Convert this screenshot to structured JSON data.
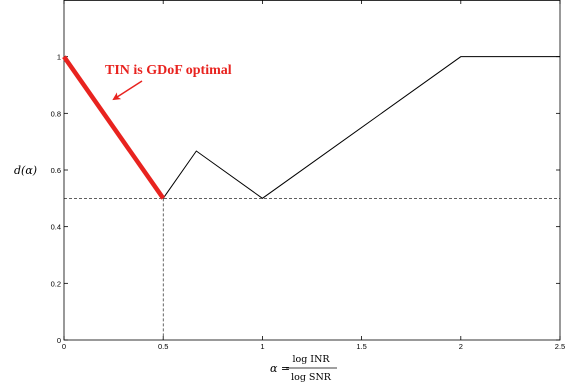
{
  "chart_data": {
    "type": "line",
    "title": "",
    "ylabel": "d(α)",
    "xlabel_prefix": "α = ",
    "xlabel_numerator": "log INR",
    "xlabel_denominator": "log SNR",
    "xlim": [
      0,
      2.5
    ],
    "ylim": [
      0,
      1.2
    ],
    "x_ticks": [
      "0",
      "0.5",
      "1",
      "1.5",
      "2",
      "2.5"
    ],
    "x_tick_values": [
      0,
      0.5,
      1,
      1.5,
      2,
      2.5
    ],
    "y_ticks": [
      "0",
      "0.2",
      "0.4",
      "0.6",
      "0.8",
      "1"
    ],
    "y_tick_values": [
      0,
      0.2,
      0.4,
      0.6,
      0.8,
      1
    ],
    "grid": false,
    "series": [
      {
        "x": [
          0,
          0.5,
          0.667,
          1,
          2,
          2.5
        ],
        "y": [
          1,
          0.5,
          0.667,
          0.5,
          1,
          1
        ],
        "color": "#000000"
      },
      {
        "x": [
          0,
          0.5
        ],
        "y": [
          1,
          0.5
        ],
        "color": "#e8231f"
      }
    ],
    "reference_lines": {
      "horizontal_y": 0.5,
      "vertical_x": 0.5,
      "style": "dashed"
    },
    "annotation": {
      "text": "TIN is GDoF optimal",
      "color": "#e8231f"
    }
  }
}
